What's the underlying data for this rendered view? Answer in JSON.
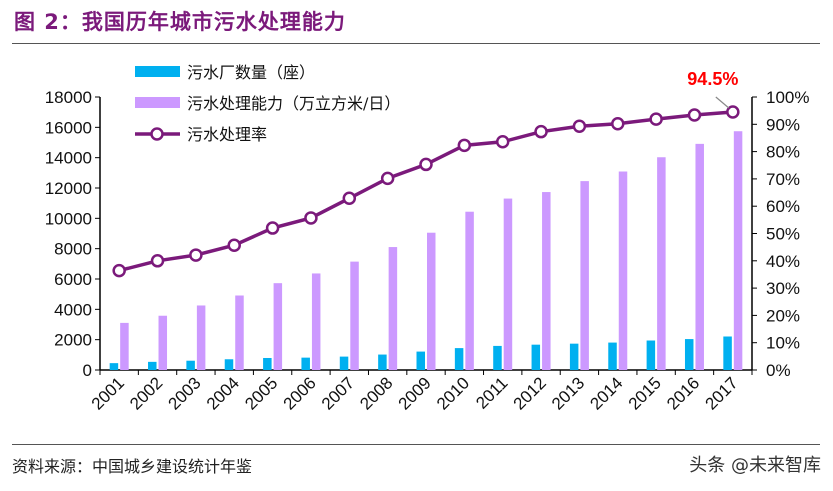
{
  "title": "图 2：我国历年城市污水处理能力",
  "source": "资料来源：中国城乡建设统计年鉴",
  "watermark": "头条 @未来智库",
  "chart_data": {
    "type": "bar+line",
    "categories": [
      "2001",
      "2002",
      "2003",
      "2004",
      "2005",
      "2006",
      "2007",
      "2008",
      "2009",
      "2010",
      "2011",
      "2012",
      "2013",
      "2014",
      "2015",
      "2016",
      "2017"
    ],
    "series": [
      {
        "name": "污水厂数量（座）",
        "type": "bar",
        "axis": "left",
        "color": "#00b0f0",
        "values": [
          452,
          537,
          612,
          708,
          792,
          815,
          883,
          1018,
          1214,
          1444,
          1588,
          1670,
          1736,
          1808,
          1944,
          2039,
          2209
        ]
      },
      {
        "name": "污水处理能力（万立方米/日）",
        "type": "bar",
        "axis": "left",
        "color": "#cc99ff",
        "values": [
          3106,
          3578,
          4254,
          4912,
          5725,
          6366,
          7146,
          8106,
          9052,
          10436,
          11303,
          11733,
          12454,
          13087,
          14028,
          14910,
          15743
        ]
      },
      {
        "name": "污水处理率",
        "type": "line",
        "axis": "right",
        "color": "#7b1a7b",
        "values": [
          36.4,
          40.0,
          42.1,
          45.7,
          52.0,
          55.7,
          62.9,
          70.2,
          75.3,
          82.3,
          83.6,
          87.3,
          89.3,
          90.2,
          91.9,
          93.4,
          94.5
        ]
      }
    ],
    "left_axis": {
      "ylim": [
        0,
        18000
      ],
      "ticks": [
        "0",
        "2000",
        "4000",
        "6000",
        "8000",
        "10000",
        "12000",
        "14000",
        "16000",
        "18000"
      ]
    },
    "right_axis": {
      "ylim": [
        0,
        100
      ],
      "ticks": [
        "0%",
        "10%",
        "20%",
        "30%",
        "40%",
        "50%",
        "60%",
        "70%",
        "80%",
        "90%",
        "100%"
      ]
    },
    "annotation": {
      "text": "94.5%",
      "color": "#ff0000"
    },
    "legend_position": "top-left",
    "grid": false
  }
}
